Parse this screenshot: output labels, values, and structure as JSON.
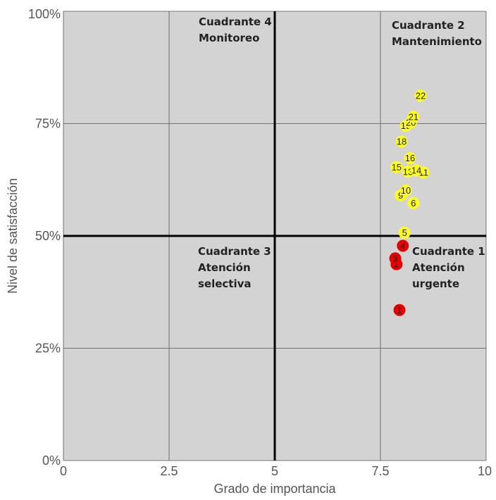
{
  "chart_data": {
    "type": "scatter",
    "title": "",
    "xlabel": "Grado de importancia",
    "ylabel": "Nivel de satisfacción",
    "xlim": [
      0,
      10
    ],
    "ylim": [
      0,
      1
    ],
    "x_ticks": [
      "0",
      "2.5",
      "5",
      "7.5",
      "10"
    ],
    "y_ticks": [
      "0%",
      "25%",
      "50%",
      "75%",
      "100%"
    ],
    "grid": true,
    "plot_background": "#d4d3d3",
    "divider_x": 5,
    "divider_y": 0.5,
    "quadrants": [
      {
        "lines": [
          "Cuadrante 4",
          "Monitoreo"
        ]
      },
      {
        "lines": [
          "Cuadrante 2",
          "Mantenimiento"
        ]
      },
      {
        "lines": [
          "Cuadrante 3",
          "Atención",
          "selectiva"
        ]
      },
      {
        "lines": [
          "Cuadrante 1",
          "Atención",
          "urgente"
        ]
      }
    ],
    "colors": {
      "high": "#ffff1e",
      "low": "#e60000"
    },
    "points": [
      {
        "label": "1",
        "x": 7.95,
        "y": 0.335,
        "group": "low"
      },
      {
        "label": "2",
        "x": 7.88,
        "y": 0.437,
        "group": "low"
      },
      {
        "label": "3",
        "x": 7.85,
        "y": 0.45,
        "group": "low"
      },
      {
        "label": "4",
        "x": 8.03,
        "y": 0.478,
        "group": "low"
      },
      {
        "label": "5",
        "x": 8.07,
        "y": 0.507,
        "group": "high"
      },
      {
        "label": "6",
        "x": 8.28,
        "y": 0.573,
        "group": "high"
      },
      {
        "label": "9",
        "x": 7.98,
        "y": 0.59,
        "group": "high"
      },
      {
        "label": "10",
        "x": 8.1,
        "y": 0.601,
        "group": "high"
      },
      {
        "label": "11",
        "x": 8.52,
        "y": 0.641,
        "group": "high"
      },
      {
        "label": "13",
        "x": 8.15,
        "y": 0.643,
        "group": "high"
      },
      {
        "label": "14",
        "x": 8.35,
        "y": 0.646,
        "group": "high"
      },
      {
        "label": "15",
        "x": 7.88,
        "y": 0.653,
        "group": "high"
      },
      {
        "label": "16",
        "x": 8.2,
        "y": 0.673,
        "group": "high"
      },
      {
        "label": "18",
        "x": 8.0,
        "y": 0.71,
        "group": "high"
      },
      {
        "label": "19",
        "x": 8.1,
        "y": 0.745,
        "group": "high"
      },
      {
        "label": "20",
        "x": 8.22,
        "y": 0.752,
        "group": "high"
      },
      {
        "label": "21",
        "x": 8.28,
        "y": 0.765,
        "group": "high"
      },
      {
        "label": "22",
        "x": 8.45,
        "y": 0.812,
        "group": "high"
      }
    ]
  }
}
